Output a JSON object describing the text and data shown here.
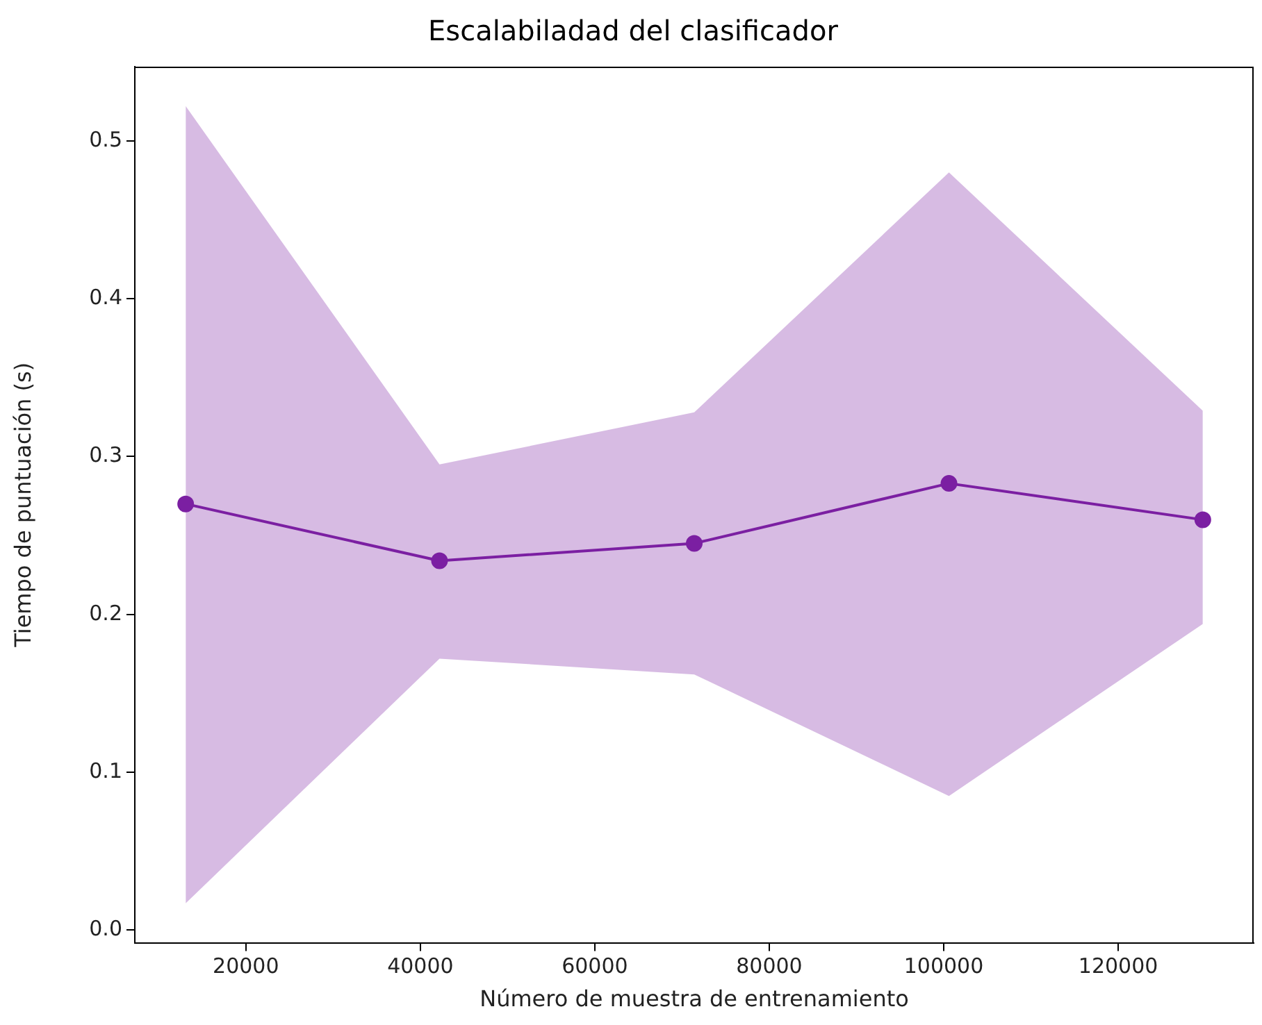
{
  "chart_data": {
    "type": "line",
    "title": "Escalabiladad del clasificador",
    "xlabel": "Número de muestra de entrenamiento",
    "ylabel": "Tiempo de puntuación (s)",
    "x": [
      13100,
      42200,
      71400,
      100600,
      129700
    ],
    "series": [
      {
        "color": "#7b1fa2",
        "values": [
          0.27,
          0.234,
          0.245,
          0.283,
          0.26
        ],
        "lower": [
          0.017,
          0.172,
          0.162,
          0.085,
          0.194
        ],
        "upper": [
          0.522,
          0.295,
          0.328,
          0.48,
          0.329
        ]
      }
    ],
    "xlim": [
      7270,
      135530
    ],
    "xticks": [
      20000,
      40000,
      60000,
      80000,
      100000,
      120000
    ],
    "ylim": [
      -0.008,
      0.547
    ],
    "yticks": [
      {
        "value": 0,
        "label": "0.0"
      },
      0.1,
      0.2,
      0.3,
      0.4,
      0.5
    ],
    "marker": "circle",
    "line_style": "solid",
    "grid": false,
    "legend": false
  }
}
